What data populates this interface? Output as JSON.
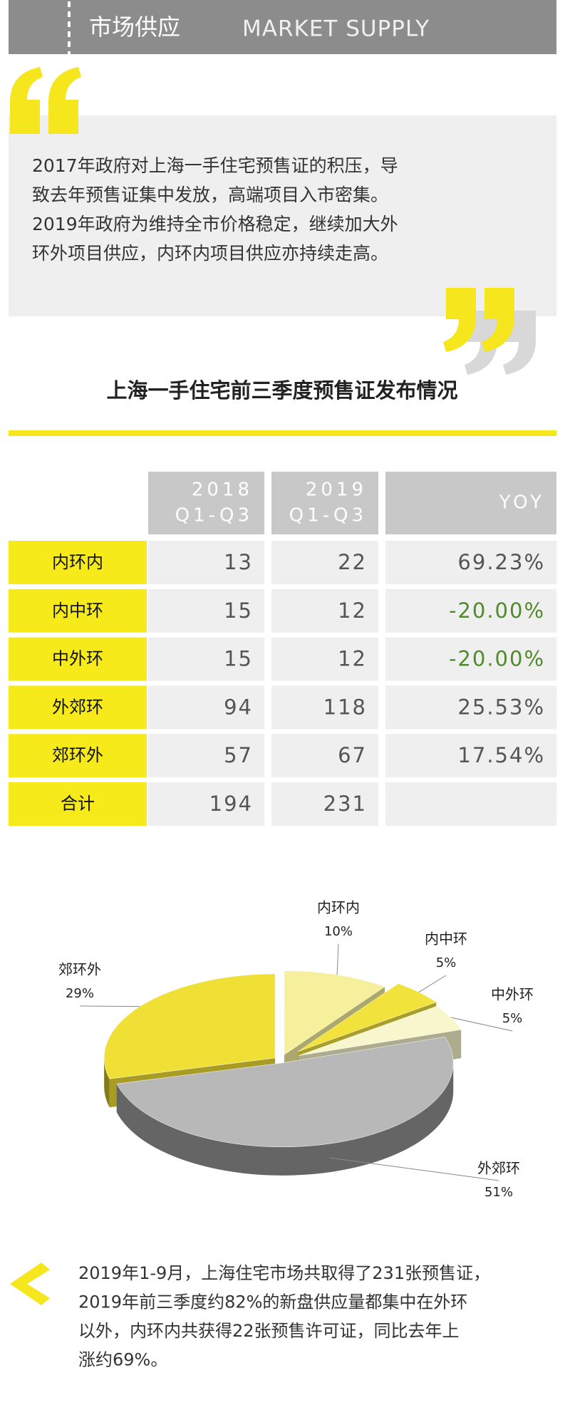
{
  "header": {
    "title": "市场供应",
    "subtitle": "MARKET SUPPLY"
  },
  "quote": {
    "lines": [
      "2017年政府对上海一手住宅预售证的积压，导",
      "致去年预售证集中发放，高端项目入市密集。",
      "2019年政府为维持全市价格稳定，继续加大外",
      "环外项目供应，内环内项目供应亦持续走高。"
    ]
  },
  "table": {
    "title": "上海一手住宅前三季度预售证发布情况",
    "headers": [
      [
        "2018",
        "Q1-Q3"
      ],
      [
        "2019",
        "Q1-Q3"
      ],
      [
        "YOY"
      ]
    ],
    "rows": [
      [
        "内环内",
        "13",
        "22",
        "69.23%"
      ],
      [
        "内中环",
        "15",
        "12",
        "-20.00%"
      ],
      [
        "中外环",
        "15",
        "12",
        "-20.00%"
      ],
      [
        "外郊环",
        "94",
        "118",
        "25.53%"
      ],
      [
        "郊环外",
        "57",
        "67",
        "17.54%"
      ],
      [
        "合计",
        "194",
        "231"
      ]
    ]
  },
  "chart_data": {
    "type": "pie",
    "categories": [
      "内环内",
      "内中环",
      "中外环",
      "外郊环",
      "郊环外"
    ],
    "values": [
      10,
      5,
      5,
      51,
      29
    ],
    "value_labels": [
      "10%",
      "5%",
      "5%",
      "51%",
      "29%"
    ],
    "colors": [
      "#f6ef9c",
      "#f2e23c",
      "#f8f6cc",
      "#b8b8b8",
      "#f0df34"
    ]
  },
  "summary": {
    "lines": [
      "2019年1-9月，上海住宅市场共取得了231张预售证，",
      "2019年前三季度约82%的新盘供应量都集中在外环",
      "以外，内环内共获得22张预售许可证，同比去年上",
      "涨约69%。"
    ]
  }
}
